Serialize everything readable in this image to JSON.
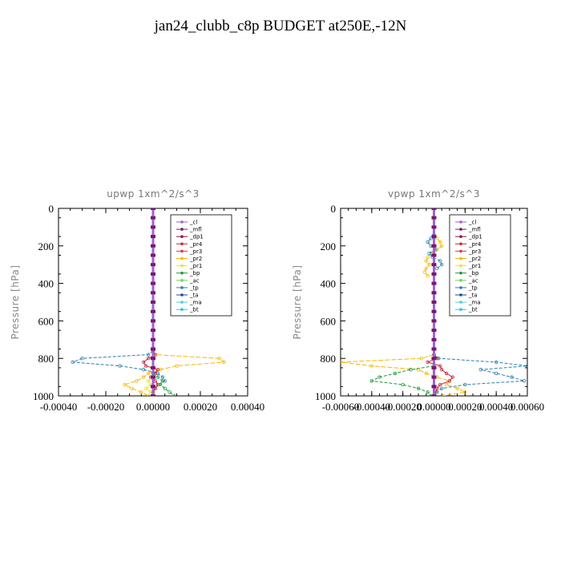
{
  "title": "jan24_clubb_c8p  BUDGET at250E,-12N",
  "legend_items": [
    {
      "name": "_cl",
      "color": "#9966cc"
    },
    {
      "name": "_mfl",
      "color": "#7b1670"
    },
    {
      "name": "_dp1",
      "color": "#8b1a4a"
    },
    {
      "name": "_pr4",
      "color": "#c8283c"
    },
    {
      "name": "_pr3",
      "color": "#e03a3a"
    },
    {
      "name": "_pr2",
      "color": "#f5b800"
    },
    {
      "name": "_pr1",
      "color": "#f2e033"
    },
    {
      "name": "_bp",
      "color": "#1f9a3a"
    },
    {
      "name": "_ac",
      "color": "#66dd55"
    },
    {
      "name": "_tp",
      "color": "#2a7fb0"
    },
    {
      "name": "_ta",
      "color": "#2244aa"
    },
    {
      "name": "_ma",
      "color": "#55ccdd"
    },
    {
      "name": "_bt",
      "color": "#22c8e6"
    }
  ],
  "chart_data": [
    {
      "type": "line",
      "title": "upwp   1xm^2/s^3",
      "xlabel": "",
      "ylabel": "Pressure  [hPa]",
      "xlim": [
        -0.0004,
        0.0004
      ],
      "ylim": [
        1000,
        0
      ],
      "x_ticks": [
        "-0.00040",
        "-0.00020",
        "0.00000",
        "0.00020",
        "0.00040"
      ],
      "x_tick_values": [
        -0.0004,
        -0.0002,
        0,
        0.0002,
        0.0004
      ],
      "y_ticks": [
        "0",
        "200",
        "400",
        "600",
        "800",
        "1000"
      ],
      "y_tick_values": [
        0,
        200,
        400,
        600,
        800,
        1000
      ],
      "legend_position": "top-right",
      "series": [
        {
          "name": "_pr2",
          "p": [
            760,
            780,
            800,
            820,
            840,
            860,
            880,
            900,
            920,
            940,
            960,
            980,
            1000
          ],
          "x": [
            0,
            1e-05,
            0.00028,
            0.0003,
            0.0001,
            3e-05,
            -2e-05,
            -4e-05,
            -7e-05,
            -0.00012,
            -9e-05,
            -5e-05,
            -2e-05
          ]
        },
        {
          "name": "_tp",
          "p": [
            760,
            780,
            800,
            820,
            840,
            860,
            880,
            900,
            920,
            940,
            960,
            980,
            1000
          ],
          "x": [
            0,
            -2e-05,
            -0.0003,
            -0.00034,
            -0.00014,
            -4e-05,
            2e-05,
            4e-05,
            5e-05,
            2e-05,
            1e-05,
            0,
            0
          ]
        },
        {
          "name": "_pr4",
          "p": [
            760,
            780,
            800,
            820,
            840,
            860,
            880,
            900,
            920,
            940,
            960,
            980,
            1000
          ],
          "x": [
            0,
            1e-05,
            -2e-05,
            -4e-05,
            -3e-05,
            2e-05,
            1e-05,
            -1e-05,
            1e-05,
            2e-05,
            1e-05,
            0,
            0
          ]
        },
        {
          "name": "_bp",
          "p": [
            880,
            900,
            920,
            940,
            960,
            980,
            1000
          ],
          "x": [
            0,
            2e-05,
            4e-05,
            3e-05,
            5e-05,
            7e-05,
            9e-05
          ]
        },
        {
          "name": "_pr1",
          "p": [
            900,
            920,
            940,
            960,
            980,
            1000
          ],
          "x": [
            0,
            -2e-05,
            -1e-05,
            -3e-05,
            -1e-05,
            0
          ]
        },
        {
          "name": "_cl",
          "p": [
            0,
            50,
            100,
            150,
            200,
            250,
            300,
            350,
            400,
            450,
            500,
            550,
            600,
            650,
            700,
            750,
            800,
            850,
            900,
            950,
            1000
          ],
          "x": [
            0,
            0,
            0,
            0,
            0,
            0,
            0,
            0,
            0,
            0,
            0,
            0,
            0,
            0,
            0,
            0,
            0,
            0,
            0,
            0,
            0
          ]
        }
      ]
    },
    {
      "type": "line",
      "title": "vpwp   1xm^2/s^3",
      "xlabel": "",
      "ylabel": "Pressure  [hPa]",
      "xlim": [
        -0.0006,
        0.0006
      ],
      "ylim": [
        1000,
        0
      ],
      "x_ticks": [
        "-0.00060",
        "-0.00040",
        "-0.00020",
        "0.00000",
        "0.00020",
        "0.00040",
        "0.00060"
      ],
      "x_tick_values": [
        -0.0006,
        -0.0004,
        -0.0002,
        0,
        0.0002,
        0.0004,
        0.0006
      ],
      "y_ticks": [
        "0",
        "200",
        "400",
        "600",
        "800",
        "1000"
      ],
      "y_tick_values": [
        0,
        200,
        400,
        600,
        800,
        1000
      ],
      "legend_position": "top-right",
      "series": [
        {
          "name": "_pr2",
          "p": [
            140,
            160,
            180,
            200,
            220,
            240,
            260,
            280,
            300,
            320,
            340,
            360
          ],
          "x": [
            0,
            2e-05,
            4e-05,
            5e-05,
            2e-05,
            -2e-05,
            -4e-05,
            -5e-05,
            -3e-05,
            -5e-05,
            -6e-05,
            -4e-05
          ]
        },
        {
          "name": "_tp",
          "p": [
            140,
            160,
            180,
            200,
            220,
            240,
            260,
            280,
            300,
            320
          ],
          "x": [
            0,
            -2e-05,
            -4e-05,
            -2e-05,
            1e-05,
            -3e-05,
            -1e-05,
            4e-05,
            5e-05,
            2e-05
          ]
        },
        {
          "name": "_pr2",
          "p": [
            780,
            800,
            820,
            840,
            860,
            880,
            900,
            920,
            940,
            960,
            980,
            1000
          ],
          "x": [
            0,
            -8e-05,
            -0.0006,
            -0.0004,
            -0.0001,
            -5e-05,
            2e-05,
            0.0001,
            8e-05,
            0.00015,
            0.0002,
            6e-05
          ]
        },
        {
          "name": "_tp",
          "p": [
            780,
            800,
            820,
            840,
            860,
            880,
            900,
            920,
            940,
            960,
            980,
            1000
          ],
          "x": [
            0,
            3e-05,
            0.0004,
            0.0006,
            0.0003,
            0.0004,
            0.0005,
            0.00058,
            0.0002,
            5e-05,
            2e-05,
            0
          ]
        },
        {
          "name": "_pr4",
          "p": [
            780,
            800,
            820,
            840,
            860,
            880,
            900,
            920,
            940,
            960,
            980,
            1000
          ],
          "x": [
            0,
            2e-05,
            -4e-05,
            4e-05,
            5e-05,
            8e-05,
            0.00012,
            0.0001,
            4e-05,
            2e-05,
            1e-05,
            0
          ]
        },
        {
          "name": "_bp",
          "p": [
            840,
            860,
            880,
            900,
            920,
            940,
            960,
            980,
            1000
          ],
          "x": [
            0,
            -0.00015,
            -0.00025,
            -0.00035,
            -0.0004,
            -0.0002,
            -0.0001,
            -4e-05,
            -2e-05
          ]
        },
        {
          "name": "_cl",
          "p": [
            0,
            50,
            100,
            150,
            200,
            250,
            300,
            350,
            400,
            450,
            500,
            550,
            600,
            650,
            700,
            750,
            800,
            850,
            900,
            950,
            1000
          ],
          "x": [
            0,
            0,
            0,
            0,
            0,
            0,
            0,
            0,
            0,
            0,
            0,
            0,
            0,
            0,
            0,
            0,
            0,
            0,
            0,
            0,
            0
          ]
        }
      ]
    }
  ]
}
